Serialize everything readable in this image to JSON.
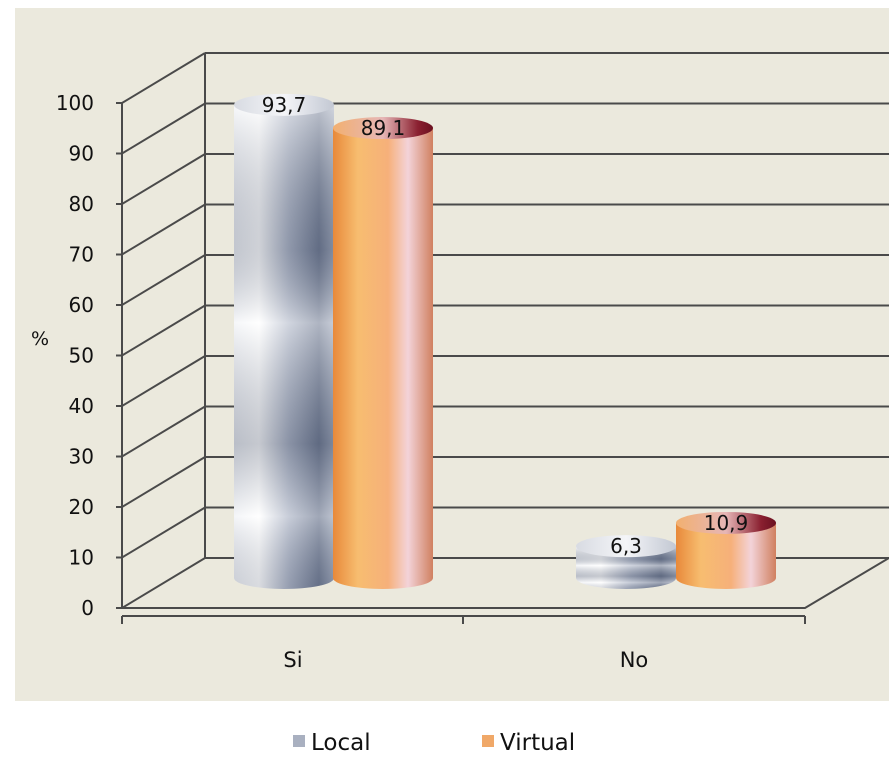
{
  "chart_data": {
    "type": "bar",
    "title": "",
    "xlabel": "",
    "ylabel": "%",
    "ylim": [
      0,
      100
    ],
    "yticks": [
      0,
      10,
      20,
      30,
      40,
      50,
      60,
      70,
      80,
      90,
      100
    ],
    "categories": [
      "Si",
      "No"
    ],
    "series": [
      {
        "name": "Local",
        "values": [
          93.7,
          6.3
        ],
        "labels": [
          "93,7",
          "6,3"
        ],
        "color": "#9aa3b8"
      },
      {
        "name": "Virtual",
        "values": [
          89.1,
          10.9
        ],
        "labels": [
          "89,1",
          "10,9"
        ],
        "color": "#f0a060"
      }
    ],
    "grid": true,
    "legend": "bottom",
    "background": "#ebe9dd"
  }
}
